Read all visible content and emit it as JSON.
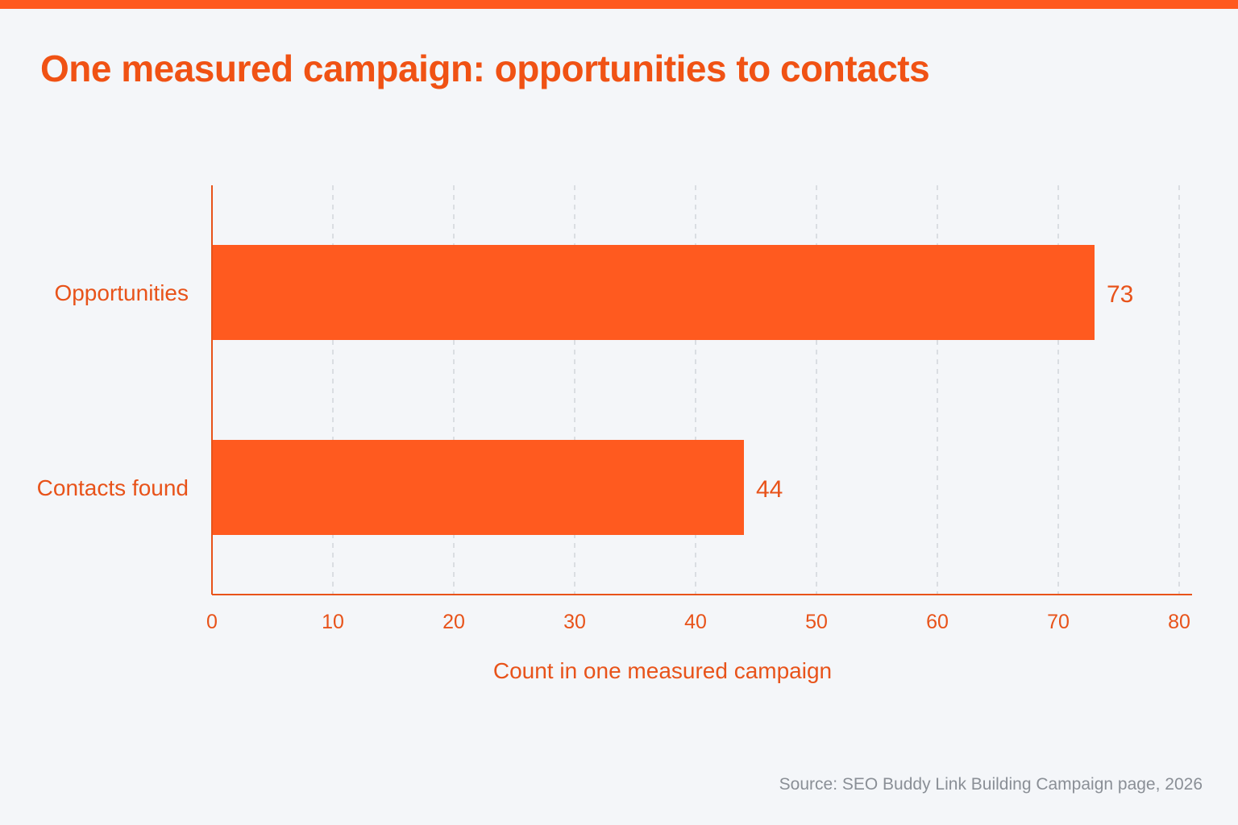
{
  "colors": {
    "accent": "#ff5a1f",
    "title": "#f05214",
    "text": "#e8531a",
    "grid": "#c9cdd3",
    "background": "#f4f6f9",
    "source": "#8a8f96"
  },
  "source_note": "Source: SEO Buddy Link Building Campaign page, 2026",
  "chart_data": {
    "type": "bar",
    "orientation": "horizontal",
    "title": "One measured campaign: opportunities to contacts",
    "categories": [
      "Opportunities",
      "Contacts found"
    ],
    "values": [
      73,
      44
    ],
    "value_labels": [
      "73",
      "44"
    ],
    "xlabel": "Count in one measured campaign",
    "ylabel": "",
    "xlim": [
      0,
      80
    ],
    "xticks": [
      0,
      10,
      20,
      30,
      40,
      50,
      60,
      70,
      80
    ],
    "grid": "vertical dashed",
    "legend": "none"
  }
}
